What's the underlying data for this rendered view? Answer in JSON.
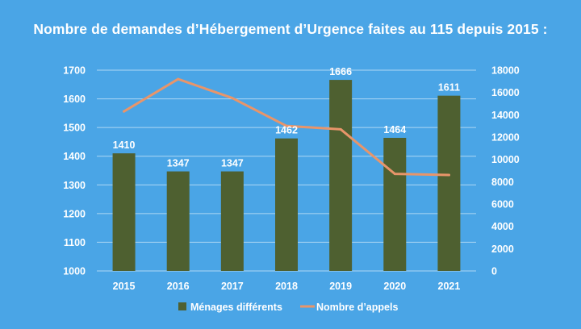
{
  "chart_data": {
    "type": "bar",
    "title": "Nombre de demandes d’Hébergement d’Urgence faites au 115 depuis 2015 :",
    "categories": [
      "2015",
      "2016",
      "2017",
      "2018",
      "2019",
      "2020",
      "2021"
    ],
    "series": [
      {
        "name": "Ménages différents",
        "type": "bar",
        "axis": "left",
        "values": [
          1410,
          1347,
          1347,
          1462,
          1666,
          1464,
          1611
        ],
        "color": "#4e6030"
      },
      {
        "name": "Nombre d’appels",
        "type": "line",
        "axis": "right",
        "values": [
          14300,
          17200,
          15500,
          13000,
          12700,
          8700,
          8600
        ],
        "color": "#e8956a"
      }
    ],
    "y_left": {
      "ylim": [
        1000,
        1700
      ],
      "ticks": [
        1000,
        1100,
        1200,
        1300,
        1400,
        1500,
        1600,
        1700
      ]
    },
    "y_right": {
      "ylim": [
        0,
        18000
      ],
      "ticks": [
        0,
        2000,
        4000,
        6000,
        8000,
        10000,
        12000,
        14000,
        16000,
        18000
      ]
    },
    "grid": true,
    "legend_position": "bottom"
  },
  "colors": {
    "background": "#4aa5e6",
    "grid": "#ffffff",
    "text": "#ffffff"
  }
}
